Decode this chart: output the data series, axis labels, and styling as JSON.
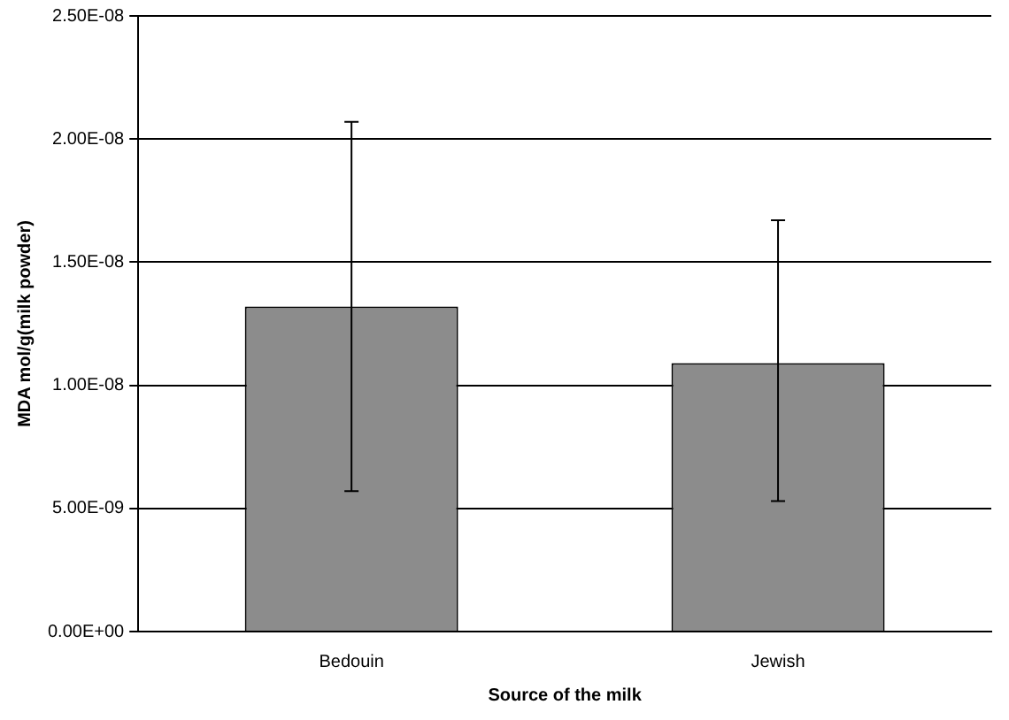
{
  "chart_data": {
    "type": "bar",
    "xlabel": "Source of the milk",
    "ylabel": "MDA mol/g(milk powder)",
    "categories": [
      "Bedouin",
      "Jewish"
    ],
    "values": [
      1.32e-08,
      1.09e-08
    ],
    "errors": [
      [
        5.7e-09,
        2.07e-08
      ],
      [
        5.3e-09,
        1.67e-08
      ]
    ],
    "color": "#8c8c8c",
    "ylim": [
      0,
      2.5e-08
    ],
    "yticks": [
      {
        "value": 0,
        "label": "0.00E+00"
      },
      {
        "value": 5e-09,
        "label": "5.00E-09"
      },
      {
        "value": 1e-08,
        "label": "1.00E-08"
      },
      {
        "value": 1.5e-08,
        "label": "1.50E-08"
      },
      {
        "value": 2e-08,
        "label": "2.00E-08"
      },
      {
        "value": 2.5e-08,
        "label": "2.50E-08"
      }
    ],
    "grid": "y",
    "legend": false
  }
}
